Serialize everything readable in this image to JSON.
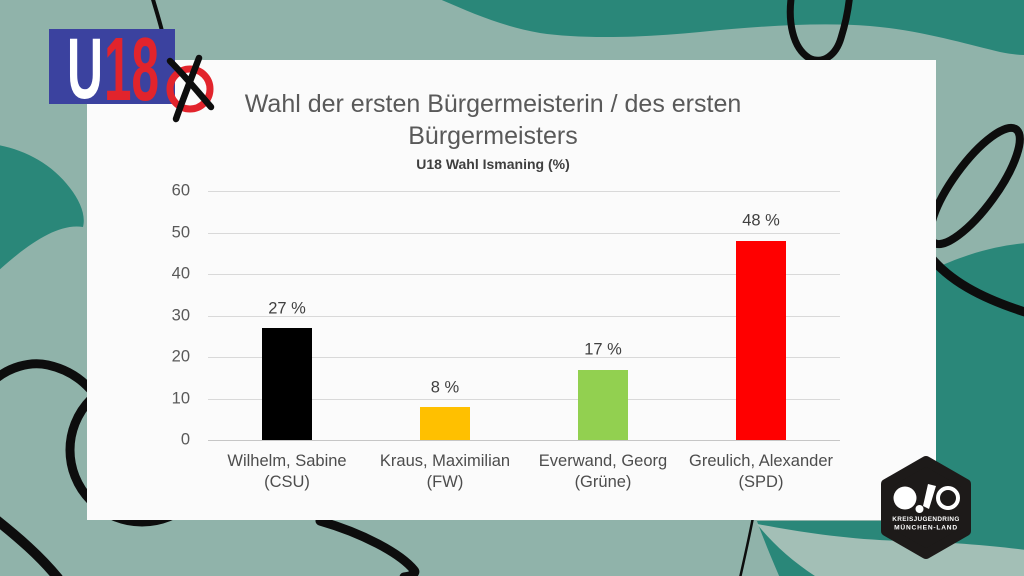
{
  "slide": {
    "background_color": "#90b3aa",
    "accent_dark_teal": "#2a8779",
    "accent_light_wave": "#a3bfb6",
    "card_color": "#fbfbfb"
  },
  "u18_logo": {
    "letter_u": "U",
    "number_18": "18",
    "box_color": "#3b429f",
    "red_color": "#e2242c",
    "cross_icon": "ballot-cross"
  },
  "kjr_badge": {
    "mark": "OJO",
    "line1": "KREISJUGENDRING",
    "line2": "MÜNCHEN-LAND",
    "badge_color": "#1d1a19"
  },
  "chart_data": {
    "type": "bar",
    "title": "Wahl der ersten Bürgermeisterin / des ersten Bürgermeisters",
    "title_lines": [
      "Wahl der ersten Bürgermeisterin / des ersten",
      "Bürgermeisters"
    ],
    "subtitle": "U18 Wahl Ismaning (%)",
    "categories": [
      {
        "name": "Wilhelm, Sabine",
        "party": "(CSU)"
      },
      {
        "name": "Kraus, Maximilian",
        "party": "(FW)"
      },
      {
        "name": "Everwand, Georg",
        "party": "(Grüne)"
      },
      {
        "name": "Greulich, Alexander",
        "party": "(SPD)"
      }
    ],
    "values": [
      27,
      8,
      17,
      48
    ],
    "value_labels": [
      "27 %",
      "8 %",
      "17 %",
      "48 %"
    ],
    "bar_colors": [
      "#000000",
      "#ffc000",
      "#92d050",
      "#ff0000"
    ],
    "ylim": [
      0,
      60
    ],
    "yticks": [
      0,
      10,
      20,
      30,
      40,
      50,
      60
    ],
    "grid": true,
    "legend": false,
    "gridline_color": "#d9d9d9"
  }
}
